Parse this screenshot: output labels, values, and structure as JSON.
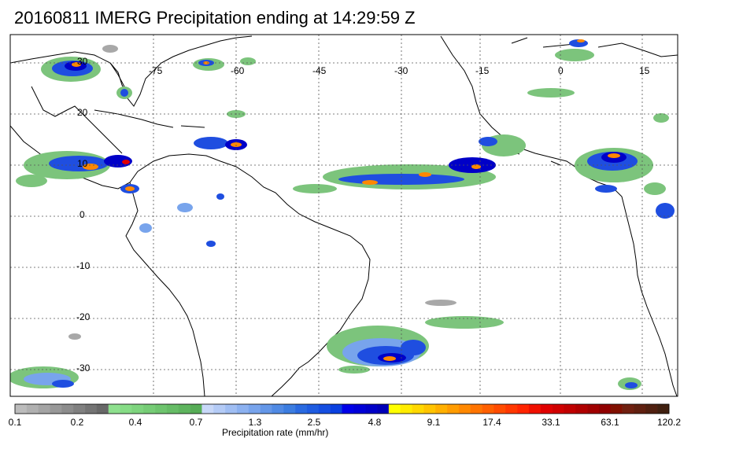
{
  "title": "20160811 IMERG Precipitation ending at 14:29:59 Z",
  "longitude_labels": [
    "-75",
    "-60",
    "-45",
    "-30",
    "-15",
    "0",
    "15"
  ],
  "latitude_labels": [
    "30",
    "20",
    "10",
    "0",
    "-10",
    "-20",
    "-30"
  ],
  "colorbar": {
    "title": "Precipitation rate (mm/hr)",
    "labels": [
      "0.1",
      "0.2",
      "0.4",
      "0.7",
      "1.3",
      "2.5",
      "4.8",
      "9.1",
      "17.4",
      "33.1",
      "63.1",
      "120.2"
    ],
    "colors": [
      "#bcbcbc",
      "#b0b0b0",
      "#a4a4a4",
      "#989898",
      "#8c8c8c",
      "#808080",
      "#747474",
      "#686868",
      "#8ee08e",
      "#86dc86",
      "#7ed47e",
      "#76cc76",
      "#6ec46e",
      "#66bc66",
      "#5eb45e",
      "#56ac56",
      "#c8d8f8",
      "#b4cbf6",
      "#a0bef3",
      "#8cb1f0",
      "#78a4ec",
      "#6497e8",
      "#508ae4",
      "#3c7de0",
      "#2a6ae0",
      "#1f5ce0",
      "#154ee0",
      "#0a40e0",
      "#0000e8",
      "#0000d8",
      "#0000c8",
      "#0000b8",
      "#ffff00",
      "#ffec00",
      "#ffd800",
      "#ffc400",
      "#ffb000",
      "#ff9c00",
      "#ff8800",
      "#ff7400",
      "#ff6000",
      "#ff4c00",
      "#ff3800",
      "#ff2400",
      "#f01000",
      "#e00000",
      "#d00000",
      "#c00000",
      "#b00000",
      "#a00000",
      "#900000",
      "#801000",
      "#702010",
      "#602010",
      "#502010",
      "#402010"
    ]
  },
  "precip_colors": {
    "gray": "#a8a8a8",
    "green": "#7cc47c",
    "lightblue": "#78a4ec",
    "blue": "#1f4ee0",
    "darkblue": "#0000c8",
    "yellow": "#ffe000",
    "orange": "#ff8800",
    "red": "#e00000"
  }
}
